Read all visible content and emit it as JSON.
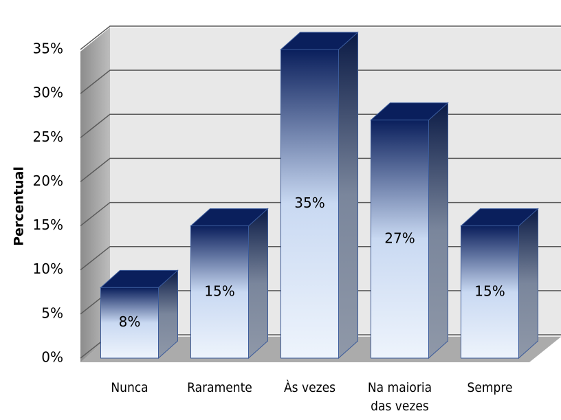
{
  "chart_data": {
    "type": "bar3d",
    "y_label": "Percentual",
    "categories": [
      "Nunca",
      "Raramente",
      "Às vezes",
      "Na maioria das vezes",
      "Sempre"
    ],
    "values": [
      8,
      15,
      35,
      27,
      15
    ],
    "value_labels": [
      "8%",
      "15%",
      "35%",
      "27%",
      "15%"
    ],
    "color": "#0a1f5c",
    "ylim": [
      0,
      35
    ],
    "yticks": [
      {
        "value": 0,
        "label": "0%"
      },
      {
        "value": 5,
        "label": "5%"
      },
      {
        "value": 10,
        "label": "10%"
      },
      {
        "value": 15,
        "label": "15%"
      },
      {
        "value": 20,
        "label": "20%"
      },
      {
        "value": 25,
        "label": "25%"
      },
      {
        "value": 30,
        "label": "30%"
      },
      {
        "value": 35,
        "label": "35%"
      }
    ],
    "grid": true
  }
}
